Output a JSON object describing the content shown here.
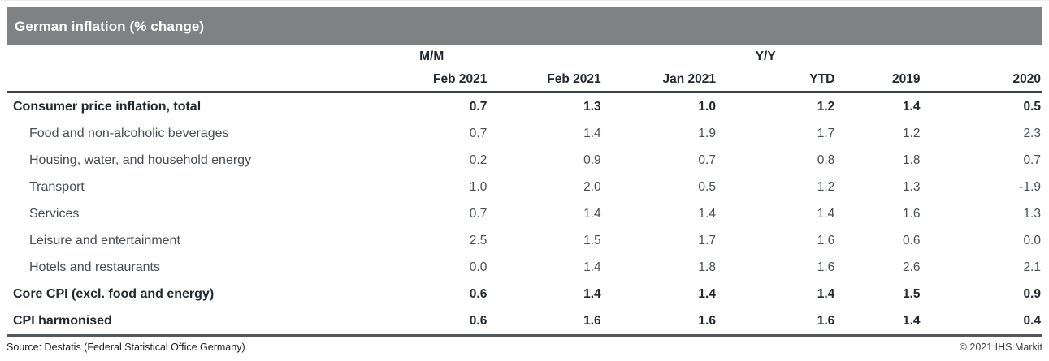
{
  "title": "German inflation (% change)",
  "table": {
    "group_headers": {
      "mm": "M/M",
      "yy": "Y/Y"
    },
    "columns": [
      "Feb 2021",
      "Feb 2021",
      "Jan 2021",
      "YTD",
      "2019",
      "2020"
    ],
    "rows": [
      {
        "label": "Consumer price inflation, total",
        "bold": true,
        "indent": false,
        "values": [
          "0.7",
          "1.3",
          "1.0",
          "1.2",
          "1.4",
          "0.5"
        ]
      },
      {
        "label": "Food and non-alcoholic beverages",
        "bold": false,
        "indent": true,
        "values": [
          "0.7",
          "1.4",
          "1.9",
          "1.7",
          "1.2",
          "2.3"
        ]
      },
      {
        "label": "Housing, water, and household energy",
        "bold": false,
        "indent": true,
        "values": [
          "0.2",
          "0.9",
          "0.7",
          "0.8",
          "1.8",
          "0.7"
        ]
      },
      {
        "label": "Transport",
        "bold": false,
        "indent": true,
        "values": [
          "1.0",
          "2.0",
          "0.5",
          "1.2",
          "1.3",
          "-1.9"
        ]
      },
      {
        "label": "Services",
        "bold": false,
        "indent": true,
        "values": [
          "0.7",
          "1.4",
          "1.4",
          "1.4",
          "1.6",
          "1.3"
        ]
      },
      {
        "label": "Leisure and entertainment",
        "bold": false,
        "indent": true,
        "values": [
          "2.5",
          "1.5",
          "1.7",
          "1.6",
          "0.6",
          "0.0"
        ]
      },
      {
        "label": "Hotels and restaurants",
        "bold": false,
        "indent": true,
        "values": [
          "0.0",
          "1.4",
          "1.8",
          "1.6",
          "2.6",
          "2.1"
        ]
      },
      {
        "label": "Core CPI (excl. food and energy)",
        "bold": true,
        "indent": false,
        "values": [
          "0.6",
          "1.4",
          "1.4",
          "1.4",
          "1.5",
          "0.9"
        ]
      },
      {
        "label": "CPI harmonised",
        "bold": true,
        "indent": false,
        "values": [
          "0.6",
          "1.6",
          "1.6",
          "1.6",
          "1.4",
          "0.4"
        ]
      }
    ]
  },
  "footer": {
    "source": "Source: Destatis (Federal Statistical Office Germany)",
    "copyright": "© 2021 IHS Markit"
  },
  "colors": {
    "header_bar": "#7f8183",
    "rule_dark": "#3c4043",
    "rule_bottom": "#54585a",
    "text_dark": "#23282d",
    "text_regular": "#474d52"
  }
}
